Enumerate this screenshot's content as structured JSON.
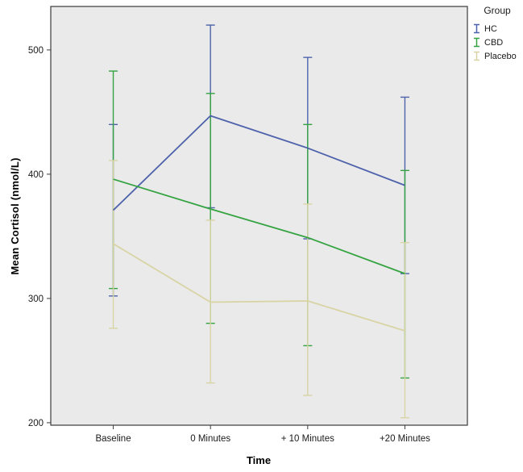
{
  "chart_data": {
    "type": "line",
    "xlabel": "Time",
    "ylabel": "Mean Cortisol (nmol/L)",
    "legend_title": "Group",
    "legend_position": "top-right-outside",
    "grid": false,
    "plot_background_color": "#EAEAEA",
    "frame_color": "#3B3B3B",
    "ylim": [
      198,
      535
    ],
    "yticks": [
      200,
      300,
      400,
      500
    ],
    "categories": [
      "Baseline",
      "0 Minutes",
      "+ 10 Minutes",
      "+20 Minutes"
    ],
    "series": [
      {
        "name": "HC",
        "color": "#4D62AB",
        "means": [
          371,
          447,
          421,
          391
        ],
        "ci_low": [
          302,
          373,
          348,
          320
        ],
        "ci_high": [
          440,
          520,
          494,
          462
        ]
      },
      {
        "name": "CBD",
        "color": "#35A341",
        "means": [
          396,
          372,
          349,
          320
        ],
        "ci_low": [
          308,
          280,
          262,
          236
        ],
        "ci_high": [
          483,
          465,
          440,
          403
        ]
      },
      {
        "name": "Placebo",
        "color": "#D8D4A4",
        "means": [
          344,
          297,
          298,
          274
        ],
        "ci_low": [
          276,
          232,
          222,
          204
        ],
        "ci_high": [
          411,
          363,
          376,
          345
        ]
      }
    ]
  }
}
